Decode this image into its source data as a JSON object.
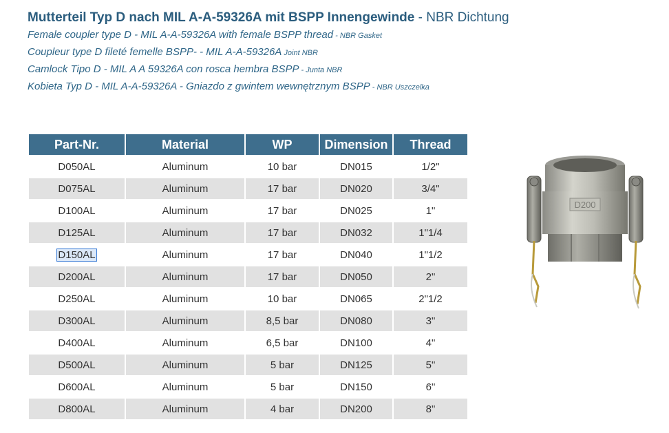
{
  "header": {
    "title_bold": "Mutterteil Typ D nach MIL A-A-59326A mit BSPP Innengewinde",
    "title_suffix": " - NBR Dichtung",
    "lines": [
      {
        "main": "Female coupler type D - MIL A-A-59326A with female BSPP thread",
        "small": " - NBR Gasket"
      },
      {
        "main": "Coupleur type D fileté femelle BSPP-  - MIL A-A-59326A",
        "small": "  Joint NBR"
      },
      {
        "main": "Camlock Tipo D - MIL A A 59326A con rosca hembra BSPP",
        "small": " - Junta NBR"
      },
      {
        "main": "Kobieta Typ D - MIL A-A-59326A - Gniazdo z gwintem wewnętrznym BSPP",
        "small": " - NBR Uszczelka"
      }
    ]
  },
  "table": {
    "columns": [
      "Part-Nr.",
      "Material",
      "WP",
      "Dimension",
      "Thread"
    ],
    "rows": [
      [
        "D050AL",
        "Aluminum",
        "10 bar",
        "DN015",
        "1/2\""
      ],
      [
        "D075AL",
        "Aluminum",
        "17 bar",
        "DN020",
        "3/4\""
      ],
      [
        "D100AL",
        "Aluminum",
        "17 bar",
        "DN025",
        "1\""
      ],
      [
        "D125AL",
        "Aluminum",
        "17 bar",
        "DN032",
        "1\"1/4"
      ],
      [
        "D150AL",
        "Aluminum",
        "17 bar",
        "DN040",
        "1\"1/2"
      ],
      [
        "D200AL",
        "Aluminum",
        "17 bar",
        "DN050",
        "2\""
      ],
      [
        "D250AL",
        "Aluminum",
        "10 bar",
        "DN065",
        "2\"1/2"
      ],
      [
        "D300AL",
        "Aluminum",
        "8,5 bar",
        "DN080",
        "3\""
      ],
      [
        "D400AL",
        "Aluminum",
        "6,5 bar",
        "DN100",
        "4\""
      ],
      [
        "D500AL",
        "Aluminum",
        "5 bar",
        "DN125",
        "5\""
      ],
      [
        "D600AL",
        "Aluminum",
        "5 bar",
        "DN150",
        "6\""
      ],
      [
        "D800AL",
        "Aluminum",
        "4 bar",
        "DN200",
        "8\""
      ]
    ]
  },
  "product_image": {
    "casting_mark": "D200"
  },
  "colors": {
    "header_bg": "#3e6e8d",
    "title_text": "#2b5d7e",
    "row_shade": "#e1e1e1"
  }
}
